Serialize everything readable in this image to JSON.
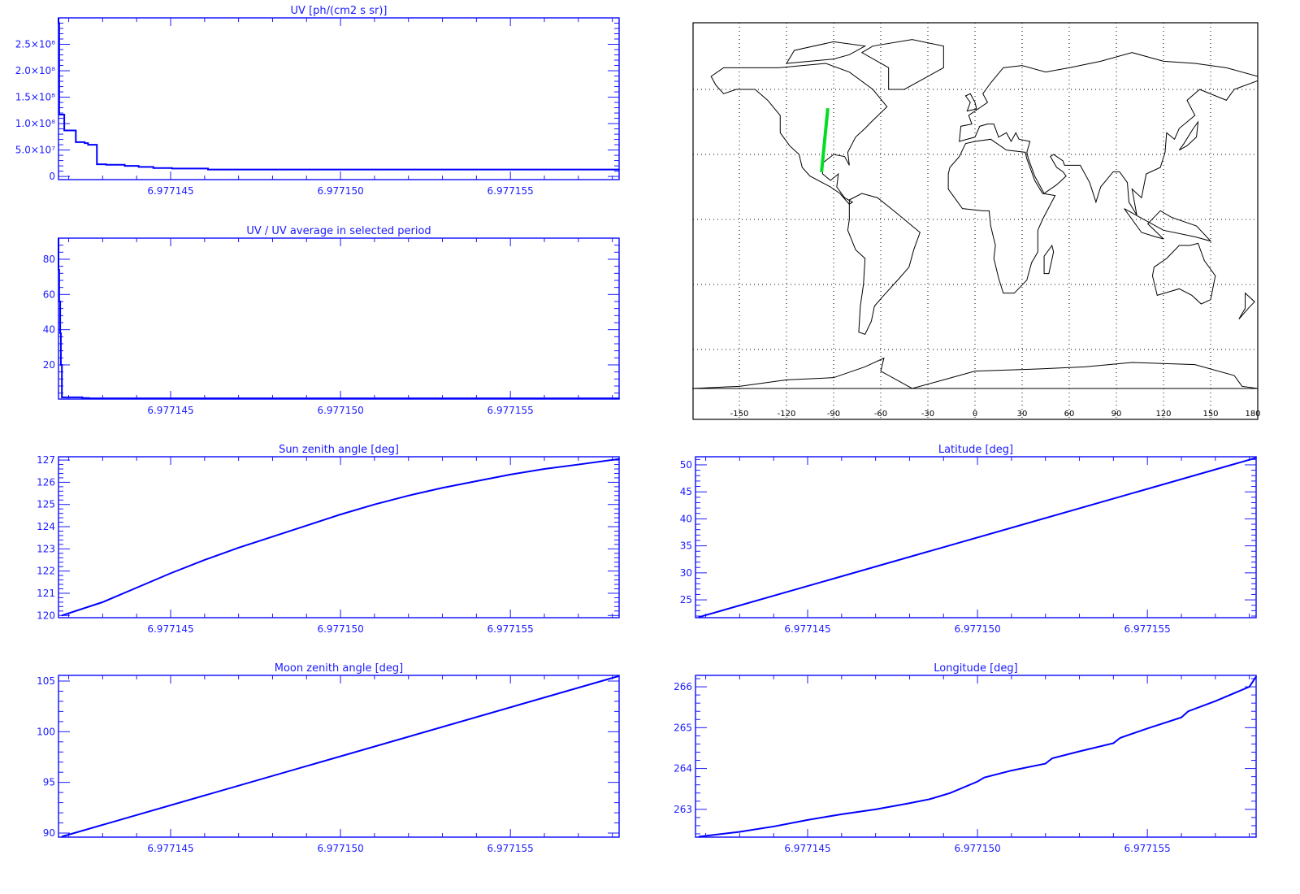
{
  "colors": {
    "axis": "#1a1aff",
    "series": "#0000ff",
    "track": "#00dd22",
    "coast": "#000000",
    "grid": "#000000"
  },
  "chart_data": [
    {
      "id": "uv",
      "type": "line",
      "step": true,
      "title": "UV [ph/(cm2 s sr)]",
      "title_html": "UV [ph/(cm^2 s sr)]",
      "xlim": [
        6.9771417,
        6.9771582
      ],
      "ylim": [
        -6000000,
        300000000
      ],
      "xticks": [
        6.977145,
        6.97715,
        6.977155
      ],
      "xtick_labels": [
        "6.977145",
        "6.977150",
        "6.977155"
      ],
      "yticks": [
        0,
        50000000,
        100000000,
        150000000,
        200000000,
        250000000
      ],
      "ytick_labels": [
        "0",
        "5.0×10⁷",
        "1.0×10⁸",
        "1.5×10⁸",
        "2.0×10⁸",
        "2.5×10⁸"
      ],
      "x": [
        6.9771417,
        6.97714172,
        6.97714187,
        6.97714221,
        6.97714247,
        6.97714257,
        6.97714283,
        6.9771431,
        6.97714365,
        6.97714406,
        6.97714449,
        6.97714504,
        6.9771461,
        6.9771582
      ],
      "y": [
        290000000,
        117000000,
        87000000,
        65000000,
        63000000,
        60000000,
        23000000,
        22000000,
        20000000,
        18000000,
        16000000,
        15000000,
        13000000,
        13000000
      ]
    },
    {
      "id": "ratio",
      "type": "line",
      "step": true,
      "title": "UV / UV average in selected period",
      "xlim": [
        6.9771417,
        6.9771582
      ],
      "ylim": [
        0.6,
        92
      ],
      "xticks": [
        6.977145,
        6.97715,
        6.977155
      ],
      "xtick_labels": [
        "6.977145",
        "6.977150",
        "6.977155"
      ],
      "yticks": [
        20,
        40,
        60,
        80
      ],
      "ytick_labels": [
        "20",
        "40",
        "60",
        "80"
      ],
      "x": [
        6.9771417,
        6.97714172,
        6.97714175,
        6.97714177,
        6.9771418,
        6.9771424,
        6.9771426,
        6.9771582
      ],
      "y": [
        74,
        56,
        38,
        20,
        1.6,
        1.2,
        1.0,
        1.0
      ]
    },
    {
      "id": "sun",
      "type": "line",
      "title": "Sun zenith angle [deg]",
      "xlim": [
        6.9771417,
        6.9771582
      ],
      "ylim": [
        119.9,
        127.15
      ],
      "xticks": [
        6.977145,
        6.97715,
        6.977155
      ],
      "xtick_labels": [
        "6.977145",
        "6.977150",
        "6.977155"
      ],
      "yticks": [
        120,
        121,
        122,
        123,
        124,
        125,
        126,
        127
      ],
      "ytick_labels": [
        "120",
        "121",
        "122",
        "123",
        "124",
        "125",
        "126",
        "127"
      ],
      "x": [
        6.9771418,
        6.977143,
        6.977144,
        6.977145,
        6.977146,
        6.977147,
        6.977148,
        6.977149,
        6.97715,
        6.977151,
        6.977152,
        6.977153,
        6.977154,
        6.977155,
        6.977156,
        6.977157,
        6.9771582
      ],
      "y": [
        120.0,
        120.6,
        121.25,
        121.9,
        122.5,
        123.05,
        123.55,
        124.05,
        124.55,
        125.0,
        125.4,
        125.75,
        126.05,
        126.35,
        126.6,
        126.8,
        127.05
      ]
    },
    {
      "id": "latitude",
      "type": "line",
      "title": "Latitude [deg]",
      "xlim": [
        6.9771417,
        6.9771582
      ],
      "ylim": [
        21.7,
        51.5
      ],
      "xticks": [
        6.977145,
        6.97715,
        6.977155
      ],
      "xtick_labels": [
        "6.977145",
        "6.977150",
        "6.977155"
      ],
      "yticks": [
        25,
        30,
        35,
        40,
        45,
        50
      ],
      "ytick_labels": [
        "25",
        "30",
        "35",
        "40",
        "45",
        "50"
      ],
      "x": [
        6.9771418,
        6.9771582
      ],
      "y": [
        21.8,
        51.3
      ]
    },
    {
      "id": "moon",
      "type": "line",
      "title": "Moon zenith angle [deg]",
      "xlim": [
        6.9771417,
        6.9771582
      ],
      "ylim": [
        89.6,
        105.56
      ],
      "xticks": [
        6.977145,
        6.97715,
        6.977155
      ],
      "xtick_labels": [
        "6.977145",
        "6.977150",
        "6.977155"
      ],
      "yticks": [
        90,
        95,
        100,
        105
      ],
      "ytick_labels": [
        "90",
        "95",
        "100",
        "105"
      ],
      "x": [
        6.9771418,
        6.9771582
      ],
      "y": [
        89.65,
        105.5
      ]
    },
    {
      "id": "longitude",
      "type": "line",
      "title": "Longitude [deg]",
      "xlim": [
        6.9771417,
        6.9771582
      ],
      "ylim": [
        262.32,
        266.28
      ],
      "xticks": [
        6.977145,
        6.97715,
        6.977155
      ],
      "xtick_labels": [
        "6.977145",
        "6.977150",
        "6.977155"
      ],
      "yticks": [
        263,
        264,
        265,
        266
      ],
      "ytick_labels": [
        "263",
        "264",
        "265",
        "266"
      ],
      "x": [
        6.9771418,
        6.977143,
        6.977144,
        6.977145,
        6.977146,
        6.977147,
        6.977148,
        6.9771486,
        6.9771492,
        6.97715,
        6.9771502,
        6.977151,
        6.977152,
        6.9771522,
        6.977153,
        6.977154,
        6.9771542,
        6.977155,
        6.977156,
        6.9771562,
        6.977157,
        6.977158,
        6.9771582
      ],
      "y": [
        262.33,
        262.45,
        262.58,
        262.74,
        262.88,
        263.0,
        263.15,
        263.25,
        263.4,
        263.68,
        263.78,
        263.95,
        264.12,
        264.25,
        264.42,
        264.62,
        264.75,
        264.98,
        265.25,
        265.4,
        265.65,
        266.0,
        266.25
      ]
    },
    {
      "id": "map",
      "type": "map",
      "xlim": [
        -180,
        180
      ],
      "ylim": [
        -90,
        90
      ],
      "grid": true,
      "xticks": [
        -150,
        -120,
        -90,
        -60,
        -30,
        0,
        30,
        60,
        90,
        120,
        150,
        180
      ],
      "xtick_labels": [
        "-150",
        "-120",
        "-90",
        "-60",
        "-30",
        "0",
        "30",
        "60",
        "90",
        "120",
        "150",
        "180"
      ],
      "track": {
        "lon": [
          -97.7,
          -93.7
        ],
        "lat": [
          21.8,
          51.3
        ]
      }
    }
  ]
}
